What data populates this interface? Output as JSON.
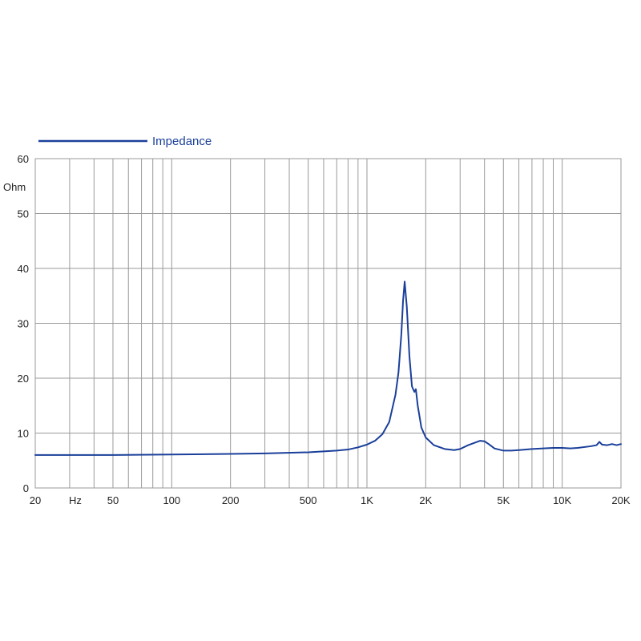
{
  "chart_data": {
    "type": "line",
    "xscale": "log",
    "xlim": [
      20,
      20000
    ],
    "ylim": [
      0,
      60
    ],
    "ylabel": "Ohm",
    "xlabel": "Hz",
    "grid": true,
    "legend": {
      "placement": "top-left"
    },
    "x_ticks": [
      {
        "value": 20,
        "label": "20"
      },
      {
        "value": 50,
        "label": "50"
      },
      {
        "value": 100,
        "label": "100"
      },
      {
        "value": 200,
        "label": "200"
      },
      {
        "value": 500,
        "label": "500"
      },
      {
        "value": 1000,
        "label": "1K"
      },
      {
        "value": 2000,
        "label": "2K"
      },
      {
        "value": 5000,
        "label": "5K"
      },
      {
        "value": 10000,
        "label": "10K"
      },
      {
        "value": 20000,
        "label": "20K"
      }
    ],
    "x_gridlines": [
      20,
      30,
      40,
      50,
      60,
      70,
      80,
      90,
      100,
      200,
      300,
      400,
      500,
      600,
      700,
      800,
      900,
      1000,
      2000,
      3000,
      4000,
      5000,
      6000,
      7000,
      8000,
      9000,
      10000,
      20000
    ],
    "y_ticks": [
      0,
      10,
      20,
      30,
      40,
      50,
      60
    ],
    "series": [
      {
        "name": "Impedance",
        "color": "#1a3f9a",
        "x": [
          20,
          50,
          100,
          200,
          300,
          500,
          700,
          800,
          900,
          1000,
          1100,
          1200,
          1300,
          1400,
          1450,
          1500,
          1530,
          1560,
          1600,
          1650,
          1700,
          1750,
          1780,
          1820,
          1900,
          2000,
          2200,
          2500,
          2800,
          3000,
          3300,
          3600,
          3800,
          4000,
          4200,
          4500,
          5000,
          5500,
          6000,
          7000,
          8000,
          9000,
          10000,
          11000,
          12000,
          14000,
          15000,
          15500,
          16000,
          17000,
          18000,
          19000,
          20000
        ],
        "y": [
          6.0,
          6.0,
          6.1,
          6.2,
          6.3,
          6.5,
          6.8,
          7.0,
          7.4,
          7.9,
          8.6,
          9.8,
          12.0,
          17.0,
          21.0,
          28.0,
          34.0,
          37.6,
          33.0,
          24.0,
          18.5,
          17.5,
          18.0,
          15.0,
          11.0,
          9.2,
          7.8,
          7.1,
          6.9,
          7.1,
          7.8,
          8.3,
          8.6,
          8.5,
          8.0,
          7.2,
          6.8,
          6.8,
          6.9,
          7.1,
          7.2,
          7.3,
          7.3,
          7.2,
          7.3,
          7.6,
          7.8,
          8.4,
          7.9,
          7.8,
          8.0,
          7.8,
          8.0
        ]
      }
    ]
  }
}
